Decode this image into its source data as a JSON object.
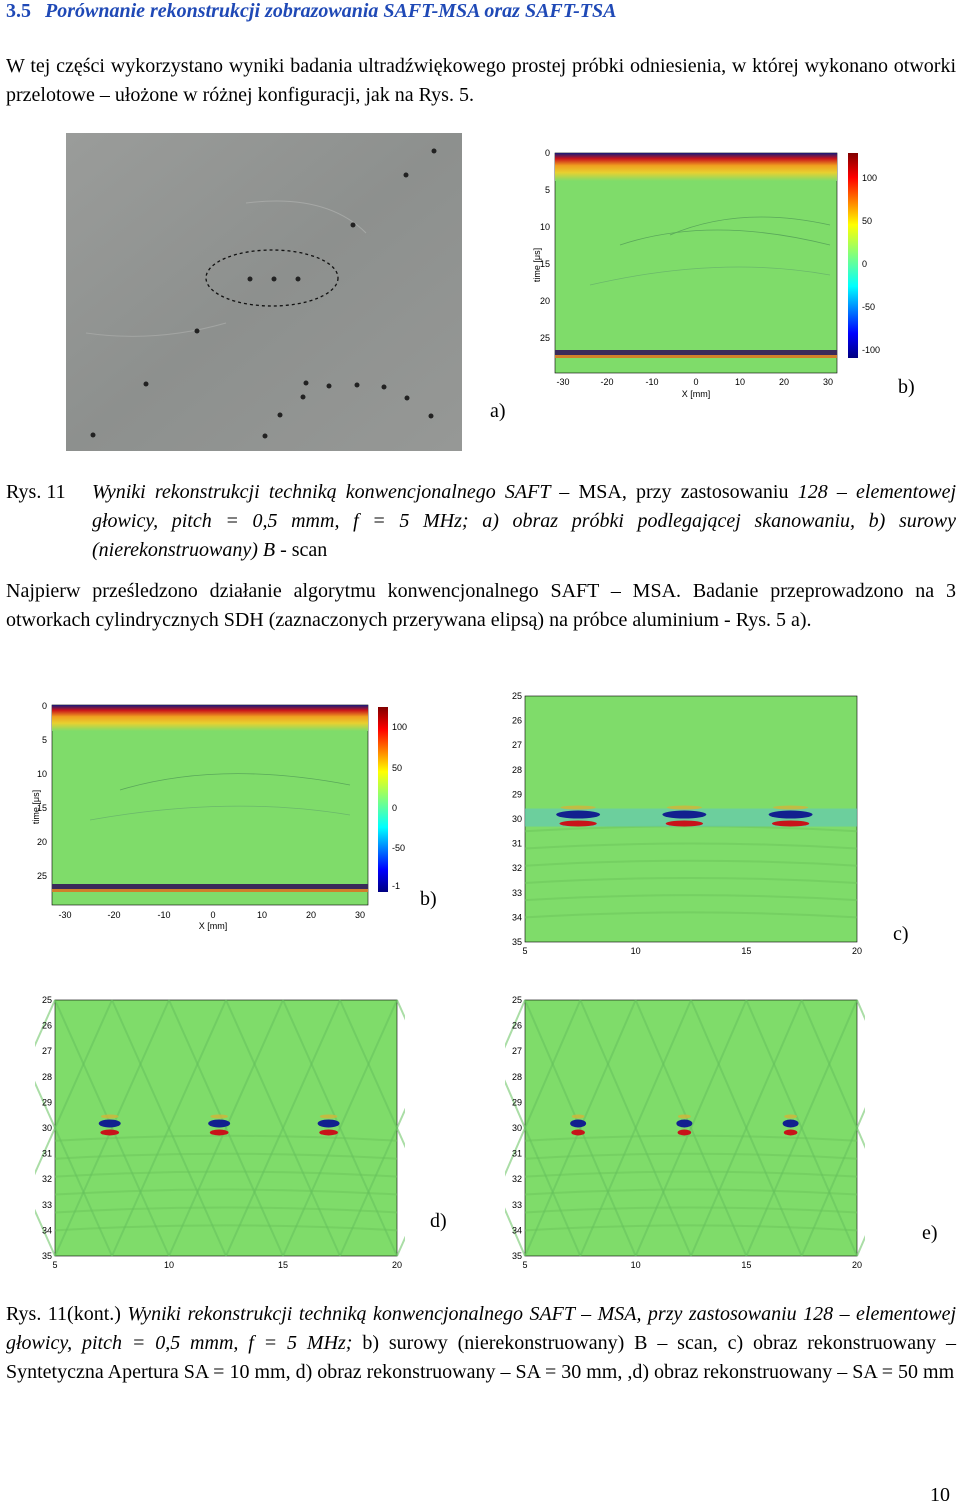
{
  "heading": {
    "number": "3.5",
    "title": "Porównanie rekonstrukcji zobrazowania SAFT-MSA oraz SAFT-TSA"
  },
  "intro": "W tej części wykorzystano wyniki badania ultradźwiękowego prostej próbki odniesienia, w której wykonano otworki przelotowe – ułożone w różnej konfiguracji, jak na Rys. 5.",
  "fig1": {
    "label_a": "a)",
    "label_b": "b)",
    "caption_num": "Rys. 11",
    "caption_a": "Wyniki rekonstrukcji techniką konwencjonalnego SAFT –",
    "caption_b": "MSA, przy zastosowaniu",
    "caption_c": "128 – elementowej głowicy, pitch = 0,5 mmm, f = 5 MHz; a) obraz próbki podlegającej skanowaniu, b) surowy (nierekonstruowany) B",
    "caption_d": "- scan"
  },
  "para2": "Najpierw prześledzono działanie algorytmu konwencjonalnego SAFT – MSA. Badanie przeprowadzono na 3 otworkach cylindrycznych SDH (zaznaczonych przerywana elipsą) na próbce aluminium - Rys. 5 a).",
  "bscan": {
    "ylabel": "time [μs]",
    "xlabel": "X [mm]",
    "yticks": [
      "0",
      "5",
      "10",
      "15",
      "20",
      "25"
    ],
    "xticks": [
      "-30",
      "-20",
      "-10",
      "0",
      "10",
      "20",
      "30"
    ],
    "cbar1": [
      "100",
      "50",
      "0",
      "-50",
      "-100"
    ],
    "cbar2": [
      "100",
      "50",
      "0",
      "-50",
      "-1"
    ]
  },
  "zoom": {
    "yticks": [
      "25",
      "26",
      "27",
      "28",
      "29",
      "30",
      "31",
      "32",
      "33",
      "34",
      "35"
    ],
    "xticks": [
      "5",
      "10",
      "15",
      "20"
    ]
  },
  "fig2": {
    "label_b": "b)",
    "label_c": "c)",
    "label_d": "d)",
    "label_e": "e)",
    "caption_num": "Rys. 11(kont.)",
    "caption_italic": "Wyniki rekonstrukcji techniką konwencjonalnego SAFT – MSA, przy zastosowaniu 128 – elementowej głowicy, pitch = 0,5 mmm, f = 5 MHz;",
    "caption_rest": "b) surowy (nierekonstruowany) B – scan, c) obraz rekonstruowany – Syntetyczna Apertura SA = 10 mm, d) obraz rekonstruowany – SA = 30 mm, ,d) obraz rekonstruowany – SA = 50 mm"
  },
  "page_number": "10",
  "colors": {
    "heading": "#1f49b6",
    "field": "#7fdc6a",
    "hot": "#c8131a",
    "cold": "#12208f"
  }
}
